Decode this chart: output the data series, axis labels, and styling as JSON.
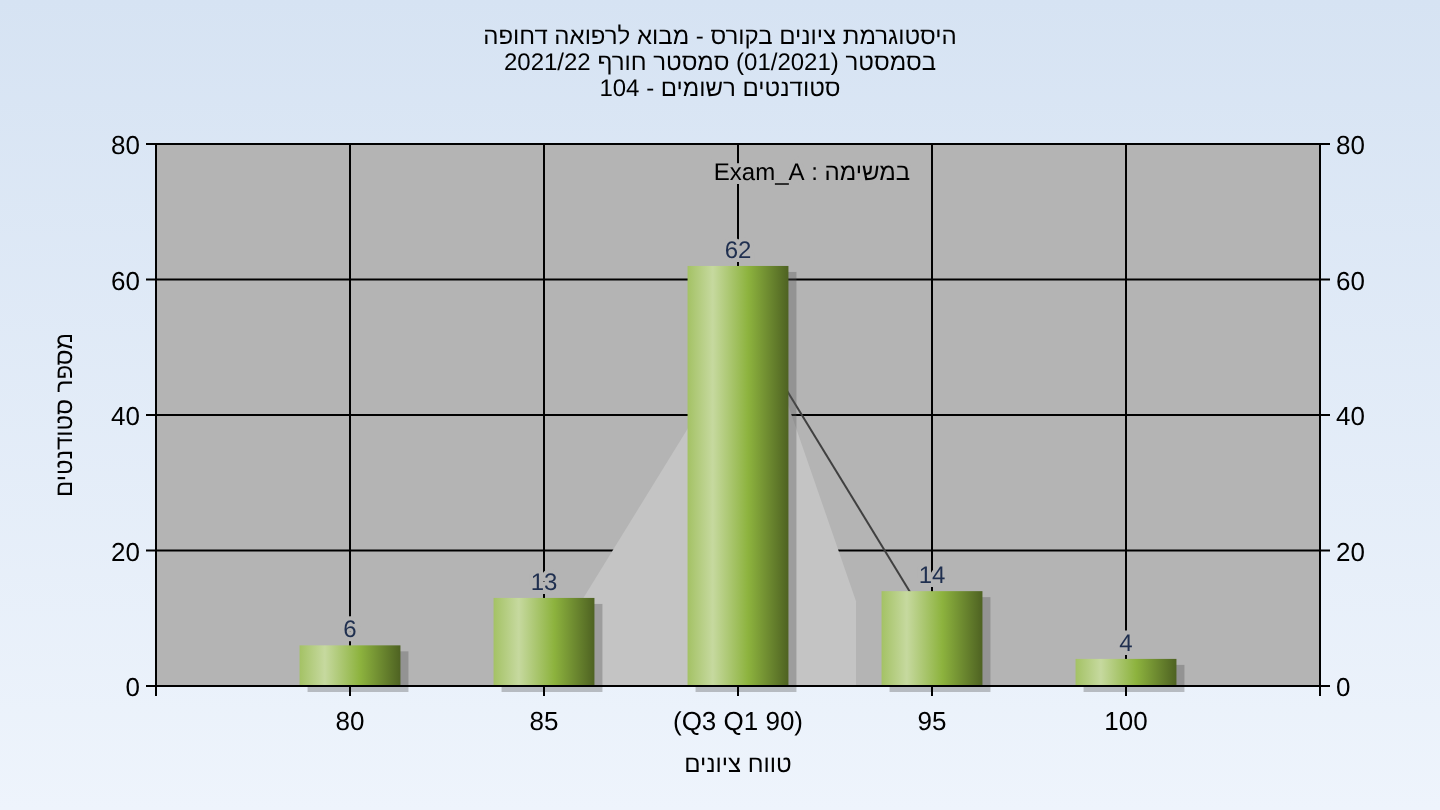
{
  "chart_data": {
    "type": "bar",
    "title": "היסטוגרמת ציונים בקורס - מבוא לרפואה דחופה\nבסמסטר  (01/2021)  סמסטר חורף 2021/22\nסטודנטים רשומים - 104",
    "categories": [
      "80",
      "85",
      "(Q3 Q1 90)",
      "95",
      "100"
    ],
    "values": [
      6,
      13,
      62,
      14,
      4
    ],
    "color": "#8db33e",
    "xlabel": "טווח ציונים",
    "ylabel": "מספר סטודנטים",
    "annotations": [
      "במשימה : Exam_A"
    ],
    "ylim": [
      0,
      80
    ],
    "yticks": [
      0,
      20,
      40,
      60,
      80
    ],
    "y2lim": [
      0,
      80
    ],
    "y2ticks": [
      0,
      20,
      40,
      60,
      80
    ],
    "grid": true,
    "data_labels": true
  }
}
